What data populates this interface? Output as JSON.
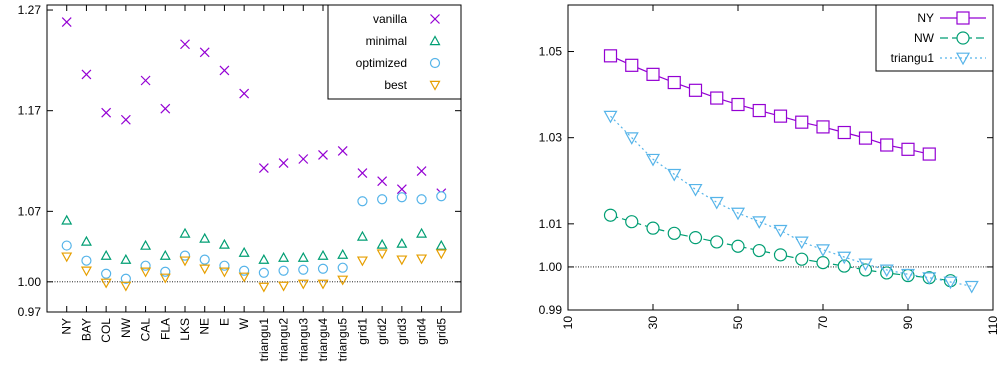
{
  "chart_data": [
    {
      "type": "scatter",
      "title": "",
      "xlabel": "",
      "ylabel": "",
      "categories": [
        "NY",
        "BAY",
        "COL",
        "NW",
        "CAL",
        "FLA",
        "LKS",
        "NE",
        "E",
        "W",
        "triangu1",
        "triangu2",
        "triangu3",
        "triangu4",
        "triangu5",
        "grid1",
        "grid2",
        "grid3",
        "grid4",
        "grid5"
      ],
      "ylim": [
        0.97,
        1.275
      ],
      "yticks": [
        0.97,
        1.0,
        1.07,
        1.17,
        1.27
      ],
      "ytick_labels": [
        "0.97",
        "1.00",
        "1.07",
        "1.17",
        "1.27"
      ],
      "reference_line": 1.0,
      "legend_position": "top-right",
      "series": [
        {
          "name": "vanilla",
          "marker": "x",
          "color": "#9400d3",
          "values": [
            1.258,
            1.206,
            1.168,
            1.161,
            1.2,
            1.172,
            1.236,
            1.228,
            1.21,
            1.187,
            1.113,
            1.118,
            1.122,
            1.126,
            1.13,
            1.108,
            1.1,
            1.092,
            1.11,
            1.088
          ]
        },
        {
          "name": "minimal",
          "marker": "triangle-up",
          "color": "#009e73",
          "values": [
            1.061,
            1.04,
            1.026,
            1.022,
            1.036,
            1.026,
            1.048,
            1.043,
            1.037,
            1.029,
            1.022,
            1.024,
            1.024,
            1.026,
            1.027,
            1.045,
            1.037,
            1.038,
            1.048,
            1.036
          ]
        },
        {
          "name": "optimized",
          "marker": "circle",
          "color": "#56b4e9",
          "values": [
            1.036,
            1.021,
            1.008,
            1.003,
            1.016,
            1.01,
            1.026,
            1.022,
            1.016,
            1.011,
            1.009,
            1.011,
            1.012,
            1.013,
            1.014,
            1.08,
            1.082,
            1.084,
            1.082,
            1.085
          ]
        },
        {
          "name": "best",
          "marker": "triangle-down",
          "color": "#e69f00",
          "values": [
            1.025,
            1.011,
            0.999,
            0.996,
            1.01,
            1.004,
            1.021,
            1.013,
            1.01,
            1.005,
            0.995,
            0.996,
            0.998,
            0.998,
            1.002,
            1.021,
            1.028,
            1.022,
            1.023,
            1.028
          ]
        }
      ]
    },
    {
      "type": "line",
      "title": "",
      "xlabel": "",
      "ylabel": "",
      "xlim": [
        10,
        110
      ],
      "ylim": [
        0.99,
        1.0608
      ],
      "xticks": [
        10,
        30,
        50,
        70,
        90,
        110
      ],
      "yticks": [
        0.99,
        1.0,
        1.01,
        1.03,
        1.05
      ],
      "ytick_labels": [
        "0.99",
        "1.00",
        "1.01",
        "1.03",
        "1.05"
      ],
      "reference_line": 1.0,
      "legend_position": "top-right",
      "series": [
        {
          "name": "NY",
          "marker": "square",
          "color": "#9400d3",
          "dash": "",
          "x": [
            20,
            25,
            30,
            35,
            40,
            45,
            50,
            55,
            60,
            65,
            70,
            75,
            80,
            85,
            90,
            95
          ],
          "y": [
            1.049,
            1.0468,
            1.0447,
            1.0428,
            1.041,
            1.0392,
            1.0377,
            1.0363,
            1.035,
            1.0336,
            1.0325,
            1.0312,
            1.0299,
            1.0283,
            1.0273,
            1.0262
          ]
        },
        {
          "name": "NW",
          "marker": "circle",
          "color": "#009e73",
          "dash": "8,4",
          "x": [
            20,
            25,
            30,
            35,
            40,
            45,
            50,
            55,
            60,
            65,
            70,
            75,
            80,
            85,
            90,
            95,
            100
          ],
          "y": [
            1.012,
            1.0105,
            1.009,
            1.0078,
            1.0068,
            1.0058,
            1.0048,
            1.0038,
            1.0028,
            1.0018,
            1.001,
            1.0002,
            0.9993,
            0.9986,
            0.998,
            0.9975,
            0.9968
          ]
        },
        {
          "name": "triangu1",
          "marker": "triangle-down",
          "color": "#56b4e9",
          "dash": "2,3",
          "x": [
            20,
            25,
            30,
            35,
            40,
            45,
            50,
            55,
            60,
            65,
            70,
            75,
            80,
            85,
            90,
            95,
            100,
            105
          ],
          "y": [
            1.035,
            1.03,
            1.025,
            1.0215,
            1.018,
            1.015,
            1.0125,
            1.0105,
            1.0085,
            1.0058,
            1.004,
            1.0023,
            1.0007,
            0.9993,
            0.9983,
            0.9975,
            0.9965,
            0.9955
          ]
        }
      ]
    }
  ]
}
